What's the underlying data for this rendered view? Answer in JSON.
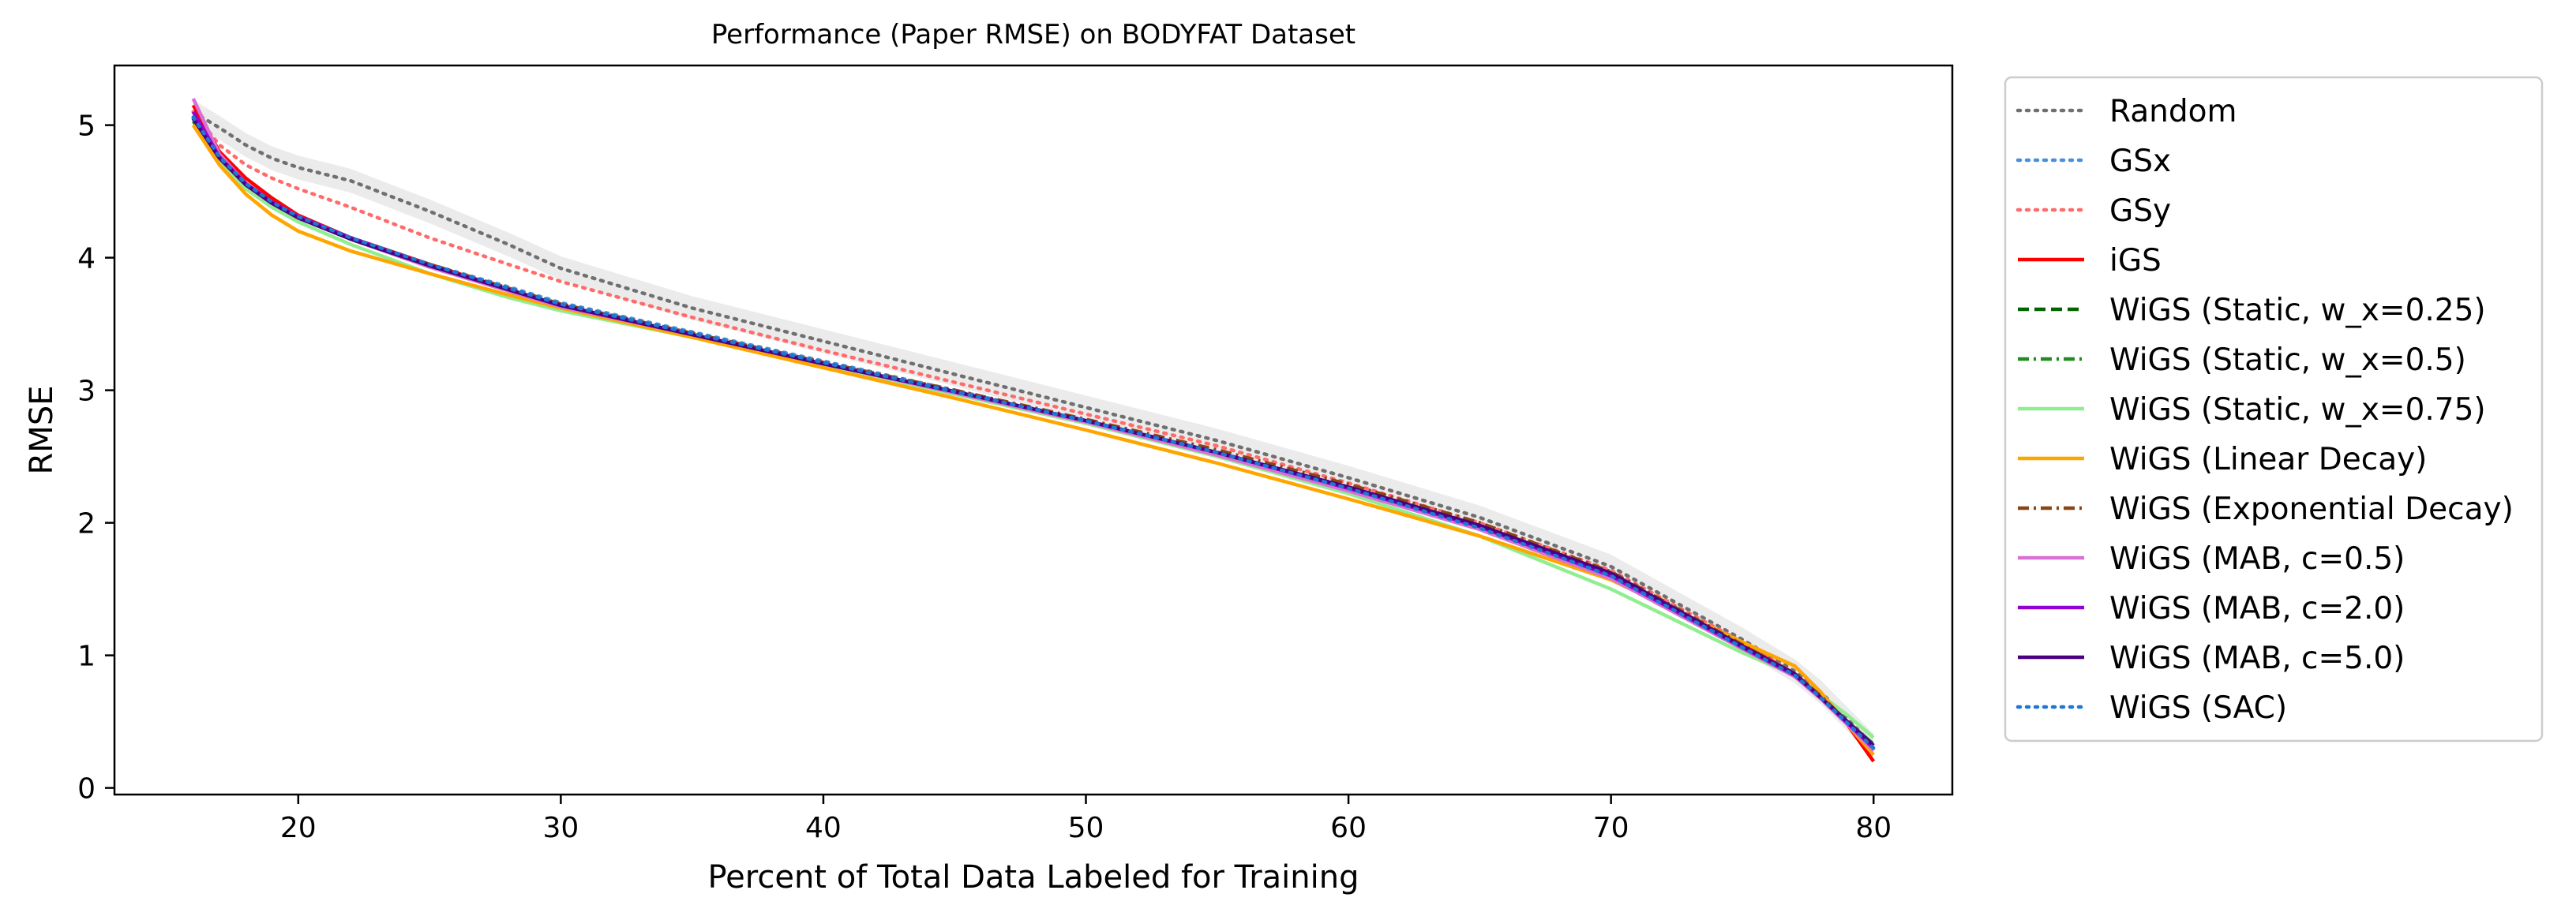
{
  "chart_data": {
    "type": "line",
    "title": "Performance (Paper RMSE) on BODYFAT Dataset",
    "xlabel": "Percent of Total Data Labeled for Training",
    "ylabel": "RMSE",
    "xlim": [
      13,
      83
    ],
    "ylim": [
      -0.05,
      5.45
    ],
    "xticks": [
      20,
      30,
      40,
      50,
      60,
      70,
      80
    ],
    "yticks": [
      0,
      1,
      2,
      3,
      4,
      5
    ],
    "grid": false,
    "legend_position": "outside-right",
    "series": [
      {
        "name": "Random",
        "color": "#707070",
        "dash": "dot",
        "band": true,
        "x": [
          16,
          17,
          18,
          19,
          20,
          22,
          25,
          28,
          30,
          35,
          40,
          45,
          50,
          55,
          60,
          65,
          70,
          75,
          77,
          78,
          79,
          80
        ],
        "y": [
          5.1,
          4.98,
          4.85,
          4.75,
          4.68,
          4.58,
          4.35,
          4.1,
          3.92,
          3.62,
          3.37,
          3.12,
          2.87,
          2.62,
          2.34,
          2.04,
          1.67,
          1.12,
          0.88,
          0.72,
          0.52,
          0.32
        ]
      },
      {
        "name": "GSx",
        "color": "#4a90d9",
        "dash": "dot",
        "band": false,
        "x": [
          16,
          17,
          18,
          19,
          20,
          22,
          25,
          28,
          30,
          35,
          40,
          45,
          50,
          55,
          60,
          65,
          70,
          75,
          77,
          78,
          79,
          80
        ],
        "y": [
          5.05,
          4.75,
          4.55,
          4.42,
          4.32,
          4.15,
          3.95,
          3.78,
          3.66,
          3.44,
          3.22,
          3.0,
          2.77,
          2.52,
          2.25,
          1.96,
          1.6,
          1.07,
          0.85,
          0.68,
          0.5,
          0.3
        ]
      },
      {
        "name": "GSy",
        "color": "#ff6b6b",
        "dash": "dot",
        "band": false,
        "x": [
          16,
          17,
          18,
          19,
          20,
          22,
          25,
          28,
          30,
          35,
          40,
          45,
          50,
          55,
          60,
          65,
          70,
          75,
          77,
          78,
          79,
          80
        ],
        "y": [
          5.1,
          4.85,
          4.7,
          4.6,
          4.52,
          4.38,
          4.15,
          3.95,
          3.82,
          3.55,
          3.3,
          3.06,
          2.82,
          2.58,
          2.3,
          2.0,
          1.64,
          1.1,
          0.86,
          0.7,
          0.5,
          0.3
        ]
      },
      {
        "name": "iGS",
        "color": "#ff0000",
        "dash": "solid",
        "band": false,
        "x": [
          16,
          17,
          18,
          19,
          20,
          22,
          25,
          28,
          30,
          35,
          40,
          45,
          50,
          55,
          60,
          65,
          70,
          75,
          77,
          78,
          79,
          80
        ],
        "y": [
          5.15,
          4.8,
          4.6,
          4.45,
          4.32,
          4.15,
          3.95,
          3.76,
          3.64,
          3.42,
          3.2,
          2.98,
          2.76,
          2.52,
          2.26,
          1.97,
          1.61,
          1.08,
          0.86,
          0.69,
          0.48,
          0.2
        ]
      },
      {
        "name": "WiGS (Static, w_x=0.25)",
        "color": "#006400",
        "dash": "dash",
        "band": false,
        "x": [
          16,
          17,
          18,
          19,
          20,
          22,
          25,
          28,
          30,
          35,
          40,
          45,
          50,
          55,
          60,
          65,
          70,
          75,
          77,
          78,
          79,
          80
        ],
        "y": [
          5.05,
          4.75,
          4.55,
          4.42,
          4.3,
          4.15,
          3.94,
          3.76,
          3.64,
          3.42,
          3.2,
          2.99,
          2.77,
          2.53,
          2.26,
          1.97,
          1.6,
          1.06,
          0.85,
          0.67,
          0.48,
          0.3
        ]
      },
      {
        "name": "WiGS (Static, w_x=0.5)",
        "color": "#228b22",
        "dash": "dashdot",
        "band": false,
        "x": [
          16,
          17,
          18,
          19,
          20,
          22,
          25,
          28,
          30,
          35,
          40,
          45,
          50,
          55,
          60,
          65,
          70,
          75,
          77,
          78,
          79,
          80
        ],
        "y": [
          5.03,
          4.74,
          4.54,
          4.41,
          4.3,
          4.14,
          3.93,
          3.75,
          3.63,
          3.41,
          3.19,
          2.98,
          2.76,
          2.52,
          2.25,
          1.95,
          1.58,
          1.05,
          0.84,
          0.68,
          0.5,
          0.33
        ]
      },
      {
        "name": "WiGS (Static, w_x=0.75)",
        "color": "#90ee90",
        "dash": "solid",
        "band": false,
        "x": [
          16,
          17,
          18,
          19,
          20,
          22,
          25,
          28,
          30,
          35,
          40,
          45,
          50,
          55,
          60,
          65,
          70,
          75,
          77,
          78,
          79,
          80
        ],
        "y": [
          5.0,
          4.72,
          4.52,
          4.38,
          4.27,
          4.1,
          3.88,
          3.7,
          3.6,
          3.4,
          3.18,
          2.97,
          2.75,
          2.5,
          2.22,
          1.9,
          1.5,
          1.02,
          0.85,
          0.7,
          0.55,
          0.38
        ]
      },
      {
        "name": "WiGS (Linear Decay)",
        "color": "#ffa500",
        "dash": "solid",
        "band": false,
        "x": [
          16,
          17,
          18,
          19,
          20,
          22,
          25,
          28,
          30,
          35,
          40,
          45,
          50,
          55,
          60,
          65,
          70,
          75,
          77,
          78,
          79,
          80
        ],
        "y": [
          5.0,
          4.7,
          4.48,
          4.32,
          4.2,
          4.05,
          3.88,
          3.72,
          3.62,
          3.4,
          3.17,
          2.94,
          2.7,
          2.45,
          2.18,
          1.9,
          1.57,
          1.1,
          0.92,
          0.72,
          0.48,
          0.25
        ]
      },
      {
        "name": "WiGS (Exponential Decay)",
        "color": "#8b4513",
        "dash": "dashdot",
        "band": false,
        "x": [
          16,
          17,
          18,
          19,
          20,
          22,
          25,
          28,
          30,
          35,
          40,
          45,
          50,
          55,
          60,
          65,
          70,
          75,
          77,
          78,
          79,
          80
        ],
        "y": [
          5.05,
          4.76,
          4.56,
          4.42,
          4.31,
          4.15,
          3.95,
          3.77,
          3.65,
          3.43,
          3.21,
          3.0,
          2.78,
          2.55,
          2.29,
          2.0,
          1.63,
          1.08,
          0.86,
          0.69,
          0.5,
          0.3
        ]
      },
      {
        "name": "WiGS (MAB, c=0.5)",
        "color": "#da70d6",
        "dash": "solid",
        "band": false,
        "x": [
          16,
          17,
          18,
          19,
          20,
          22,
          25,
          28,
          30,
          35,
          40,
          45,
          50,
          55,
          60,
          65,
          70,
          75,
          77,
          78,
          79,
          80
        ],
        "y": [
          5.2,
          4.78,
          4.56,
          4.42,
          4.31,
          4.14,
          3.93,
          3.75,
          3.63,
          3.42,
          3.2,
          2.98,
          2.76,
          2.51,
          2.24,
          1.95,
          1.58,
          1.05,
          0.84,
          0.67,
          0.48,
          0.28
        ]
      },
      {
        "name": "WiGS (MAB, c=2.0)",
        "color": "#9400d3",
        "dash": "solid",
        "band": false,
        "x": [
          16,
          17,
          18,
          19,
          20,
          22,
          25,
          28,
          30,
          35,
          40,
          45,
          50,
          55,
          60,
          65,
          70,
          75,
          77,
          78,
          79,
          80
        ],
        "y": [
          5.1,
          4.76,
          4.56,
          4.42,
          4.31,
          4.15,
          3.94,
          3.76,
          3.64,
          3.42,
          3.2,
          2.99,
          2.77,
          2.53,
          2.26,
          1.97,
          1.6,
          1.06,
          0.85,
          0.68,
          0.49,
          0.3
        ]
      },
      {
        "name": "WiGS (MAB, c=5.0)",
        "color": "#4b0082",
        "dash": "solid",
        "band": false,
        "x": [
          16,
          17,
          18,
          19,
          20,
          22,
          25,
          28,
          30,
          35,
          40,
          45,
          50,
          55,
          60,
          65,
          70,
          75,
          77,
          78,
          79,
          80
        ],
        "y": [
          5.05,
          4.75,
          4.55,
          4.41,
          4.3,
          4.14,
          3.94,
          3.76,
          3.64,
          3.42,
          3.2,
          2.99,
          2.77,
          2.53,
          2.27,
          1.98,
          1.62,
          1.07,
          0.86,
          0.68,
          0.5,
          0.32
        ]
      },
      {
        "name": "WiGS (SAC)",
        "color": "#1f77d4",
        "dash": "dot",
        "band": false,
        "x": [
          16,
          17,
          18,
          19,
          20,
          22,
          25,
          28,
          30,
          35,
          40,
          45,
          50,
          55,
          60,
          65,
          70,
          75,
          77,
          78,
          79,
          80
        ],
        "y": [
          5.06,
          4.76,
          4.56,
          4.42,
          4.31,
          4.15,
          3.95,
          3.77,
          3.65,
          3.43,
          3.21,
          2.99,
          2.77,
          2.53,
          2.26,
          1.96,
          1.6,
          1.06,
          0.85,
          0.68,
          0.49,
          0.3
        ]
      }
    ]
  }
}
